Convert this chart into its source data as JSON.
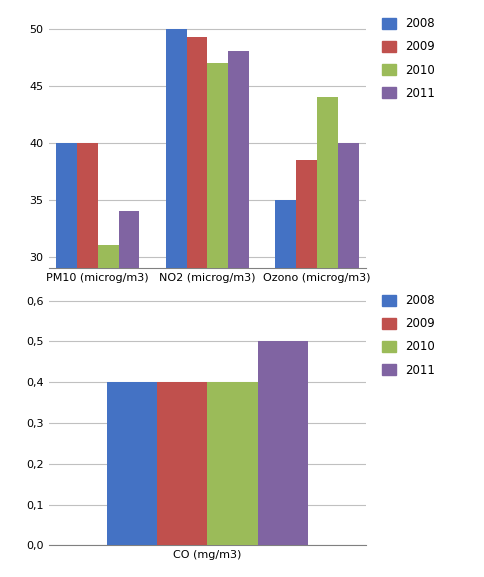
{
  "top_chart": {
    "categories": [
      "PM10 (microg/m3)",
      "NO2 (microg/m3)",
      "Ozono (microg/m3)"
    ],
    "series": {
      "2008": [
        40,
        50,
        35
      ],
      "2009": [
        40,
        49.3,
        38.5
      ],
      "2010": [
        31,
        47,
        44
      ],
      "2011": [
        34,
        48,
        40
      ]
    },
    "ylim": [
      29,
      51.5
    ],
    "yticks": [
      30,
      35,
      40,
      45,
      50
    ],
    "bar_width": 0.19
  },
  "bottom_chart": {
    "categories": [
      "CO (mg/m3)"
    ],
    "series": {
      "2008": [
        0.4
      ],
      "2009": [
        0.4
      ],
      "2010": [
        0.4
      ],
      "2011": [
        0.5
      ]
    },
    "ylim": [
      0,
      0.63
    ],
    "yticks": [
      0,
      0.1,
      0.2,
      0.3,
      0.4,
      0.5,
      0.6
    ],
    "bar_width": 0.19
  },
  "colors": {
    "2008": "#4472C4",
    "2009": "#C0504D",
    "2010": "#9BBB59",
    "2011": "#8064A2"
  },
  "years": [
    "2008",
    "2009",
    "2010",
    "2011"
  ],
  "background_color": "#FFFFFF",
  "grid_color": "#C0C0C0",
  "legend_fontsize": 8.5
}
